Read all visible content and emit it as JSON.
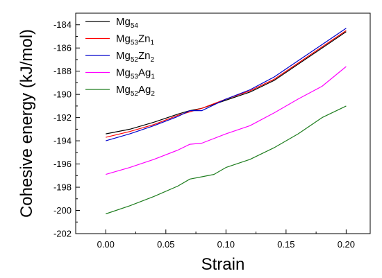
{
  "chart_data": {
    "type": "line",
    "xlabel": "Strain",
    "ylabel": "Cohesive energy (kJ/mol)",
    "xlim": [
      -0.025,
      0.22
    ],
    "ylim": [
      -202,
      -183
    ],
    "x_ticks": [
      "0.00",
      "0.05",
      "0.10",
      "0.15",
      "0.20"
    ],
    "y_ticks": [
      "-184",
      "-186",
      "-188",
      "-190",
      "-192",
      "-194",
      "-196",
      "-198",
      "-200",
      "-202"
    ],
    "grid": false,
    "legend_position": "top-left",
    "series": [
      {
        "name": "Mg54",
        "base": "Mg",
        "sub1": "54",
        "el2": "",
        "sub2": "",
        "color": "#000000",
        "x": [
          0.0,
          0.02,
          0.04,
          0.06,
          0.07,
          0.08,
          0.1,
          0.12,
          0.14,
          0.16,
          0.18,
          0.2
        ],
        "y": [
          -193.4,
          -193.0,
          -192.4,
          -191.7,
          -191.4,
          -191.2,
          -190.5,
          -189.8,
          -188.8,
          -187.4,
          -186.0,
          -184.6
        ]
      },
      {
        "name": "Mg53Zn1",
        "base": "Mg",
        "sub1": "53",
        "el2": "Zn",
        "sub2": "1",
        "color": "#ff0000",
        "x": [
          0.0,
          0.02,
          0.04,
          0.06,
          0.07,
          0.08,
          0.1,
          0.12,
          0.14,
          0.16,
          0.18,
          0.2
        ],
        "y": [
          -193.7,
          -193.2,
          -192.6,
          -191.8,
          -191.5,
          -191.2,
          -190.4,
          -189.7,
          -188.7,
          -187.3,
          -185.9,
          -184.5
        ]
      },
      {
        "name": "Mg52Zn2",
        "base": "Mg",
        "sub1": "52",
        "el2": "Zn",
        "sub2": "2",
        "color": "#0000cc",
        "x": [
          0.0,
          0.02,
          0.04,
          0.06,
          0.07,
          0.08,
          0.1,
          0.12,
          0.14,
          0.16,
          0.18,
          0.2
        ],
        "y": [
          -194.0,
          -193.4,
          -192.7,
          -191.9,
          -191.4,
          -191.4,
          -190.4,
          -189.6,
          -188.5,
          -187.1,
          -185.7,
          -184.3
        ]
      },
      {
        "name": "Mg53Ag1",
        "base": "Mg",
        "sub1": "53",
        "el2": "Ag",
        "sub2": "1",
        "color": "#ff00ff",
        "x": [
          0.0,
          0.02,
          0.04,
          0.06,
          0.07,
          0.08,
          0.1,
          0.12,
          0.14,
          0.16,
          0.18,
          0.2
        ],
        "y": [
          -196.9,
          -196.3,
          -195.6,
          -194.8,
          -194.3,
          -194.2,
          -193.4,
          -192.7,
          -191.6,
          -190.4,
          -189.3,
          -187.6
        ]
      },
      {
        "name": "Mg52Ag2",
        "base": "Mg",
        "sub1": "52",
        "el2": "Ag",
        "sub2": "2",
        "color": "#1e7d1e",
        "x": [
          0.0,
          0.02,
          0.04,
          0.06,
          0.07,
          0.08,
          0.09,
          0.1,
          0.12,
          0.14,
          0.16,
          0.18,
          0.2
        ],
        "y": [
          -200.3,
          -199.6,
          -198.8,
          -197.9,
          -197.3,
          -197.1,
          -196.9,
          -196.3,
          -195.6,
          -194.6,
          -193.4,
          -192.0,
          -191.0
        ]
      }
    ]
  }
}
